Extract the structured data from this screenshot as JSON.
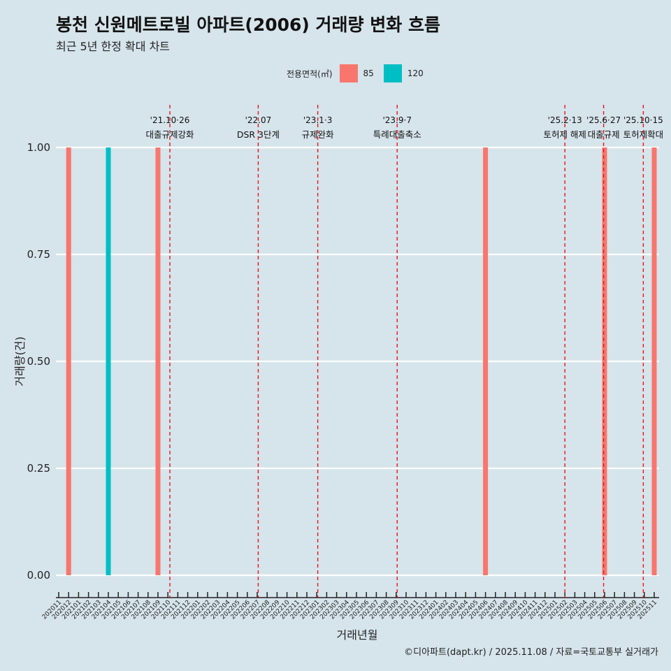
{
  "title": "봉천 신원메트로빌 아파트(2006) 거래량 변화 흐름",
  "subtitle": "최근 5년 한정 확대 차트",
  "caption": "©디아파트(dapt.kr) / 2025.11.08 / 자료=국토교통부 실거래가",
  "chart_data": {
    "type": "bar",
    "xlabel": "거래년월",
    "ylabel": "거래량(건)",
    "ylim": [
      0,
      1
    ],
    "yticks": [
      "0.00",
      "0.25",
      "0.50",
      "0.75",
      "1.00"
    ],
    "legend": {
      "title": "전용면적(㎡)",
      "position": "top",
      "entries": [
        {
          "name": "85",
          "color": "#f8766d"
        },
        {
          "name": "120",
          "color": "#00bfc4"
        }
      ]
    },
    "categories": [
      "202011",
      "202012",
      "202101",
      "202102",
      "202103",
      "202104",
      "202105",
      "202106",
      "202107",
      "202108",
      "202109",
      "202110",
      "202111",
      "202112",
      "202201",
      "202202",
      "202203",
      "202204",
      "202205",
      "202206",
      "202207",
      "202208",
      "202209",
      "202210",
      "202211",
      "202212",
      "202301",
      "202302",
      "202303",
      "202304",
      "202305",
      "202306",
      "202307",
      "202308",
      "202309",
      "202310",
      "202311",
      "202312",
      "202401",
      "202402",
      "202403",
      "202404",
      "202405",
      "202406",
      "202407",
      "202408",
      "202409",
      "202410",
      "202411",
      "202412",
      "202501",
      "202502",
      "202503",
      "202504",
      "202505",
      "202506",
      "202507",
      "202508",
      "202509",
      "202510",
      "202511"
    ],
    "series": [
      {
        "name": "85",
        "color": "#f8766d",
        "points": [
          {
            "x": "202012",
            "y": 1
          },
          {
            "x": "202109",
            "y": 1
          },
          {
            "x": "202406",
            "y": 1
          },
          {
            "x": "202506",
            "y": 1
          },
          {
            "x": "202511",
            "y": 1
          }
        ]
      },
      {
        "name": "120",
        "color": "#00bfc4",
        "points": [
          {
            "x": "202104",
            "y": 1
          }
        ]
      }
    ],
    "annotations": [
      {
        "month": 11.2,
        "date": "'21.10·26",
        "label": "대출규제강화"
      },
      {
        "month": 20.1,
        "date": "'22.07",
        "label": "DSR 3단계"
      },
      {
        "month": 26.1,
        "date": "'23.1·3",
        "label": "규제완화"
      },
      {
        "month": 34.1,
        "date": "'23.9·7",
        "label": "특례대출축소"
      },
      {
        "month": 51.0,
        "date": "'25.2·13",
        "label": "토허제 해제"
      },
      {
        "month": 54.9,
        "date": "'25.6·27",
        "label": "대출규제"
      },
      {
        "month": 58.9,
        "date": "'25.10·15",
        "label": "토허제확대"
      }
    ]
  }
}
